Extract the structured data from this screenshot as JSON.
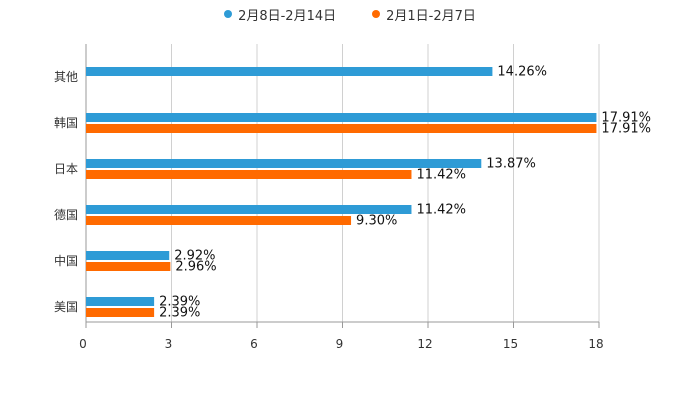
{
  "chart_data": {
    "type": "bar",
    "orientation": "horizontal",
    "title": "",
    "categories": [
      "其他",
      "韩国",
      "日本",
      "德国",
      "中国",
      "美国"
    ],
    "series": [
      {
        "name": "2月8日-2月14日",
        "color": "#2e9bd6",
        "values": [
          14.26,
          17.91,
          13.87,
          11.42,
          2.92,
          2.39
        ],
        "labels": [
          "14.26%",
          "17.91%",
          "13.87%",
          "11.42%",
          "2.92%",
          "2.39%"
        ]
      },
      {
        "name": "2月1日-2月7日",
        "color": "#ff6a00",
        "values": [
          null,
          17.91,
          11.42,
          9.3,
          2.96,
          2.39
        ],
        "labels": [
          null,
          "17.91%",
          "11.42%",
          "9.30%",
          "2.96%",
          "2.39%"
        ]
      }
    ],
    "xlim": [
      0,
      18
    ],
    "xticks": [
      "0",
      "3",
      "6",
      "9",
      "12",
      "15",
      "18"
    ],
    "tick_values": [
      0,
      3,
      6,
      9,
      12,
      15,
      18
    ],
    "grid": true,
    "legend_position": "top-center"
  }
}
